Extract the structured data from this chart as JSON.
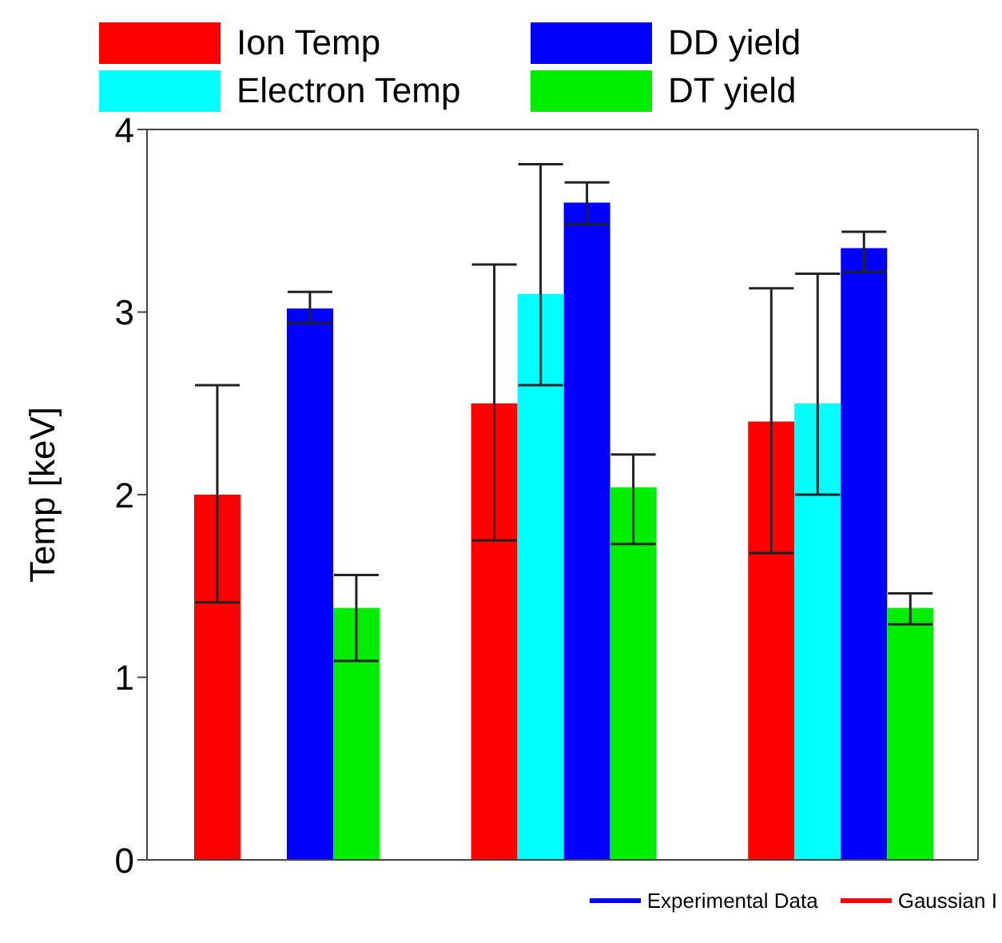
{
  "chart_data": {
    "type": "bar",
    "ylabel": "Temp [keV]",
    "categories": [
      null,
      null,
      null
    ],
    "series": [
      {
        "name": "Ion Temp",
        "color": "#ff0000",
        "values": [
          2.0,
          2.5,
          2.4
        ],
        "errors": [
          [
            1.41,
            2.6
          ],
          [
            1.75,
            3.26
          ],
          [
            1.68,
            3.13
          ]
        ]
      },
      {
        "name": "Electron Temp",
        "color": "#00ffff",
        "values": [
          null,
          3.1,
          2.5
        ],
        "errors": [
          null,
          [
            2.6,
            3.81
          ],
          [
            2.0,
            3.21
          ]
        ]
      },
      {
        "name": "DD yield",
        "color": "#0000ff",
        "values": [
          3.02,
          3.6,
          3.35
        ],
        "errors": [
          [
            2.94,
            3.11
          ],
          [
            3.48,
            3.71
          ],
          [
            3.22,
            3.44
          ]
        ]
      },
      {
        "name": "DT yield",
        "color": "#00ee00",
        "values": [
          1.38,
          2.04,
          1.38
        ],
        "errors": [
          [
            1.09,
            1.56
          ],
          [
            1.73,
            2.22
          ],
          [
            1.29,
            1.46
          ]
        ]
      }
    ],
    "ylim": [
      0,
      4
    ],
    "yticks": [
      0,
      1,
      2,
      3,
      4
    ],
    "legend": "top",
    "tick_labels": "y",
    "annotations": [
      "Experimental Data",
      "Gaussian I"
    ]
  }
}
